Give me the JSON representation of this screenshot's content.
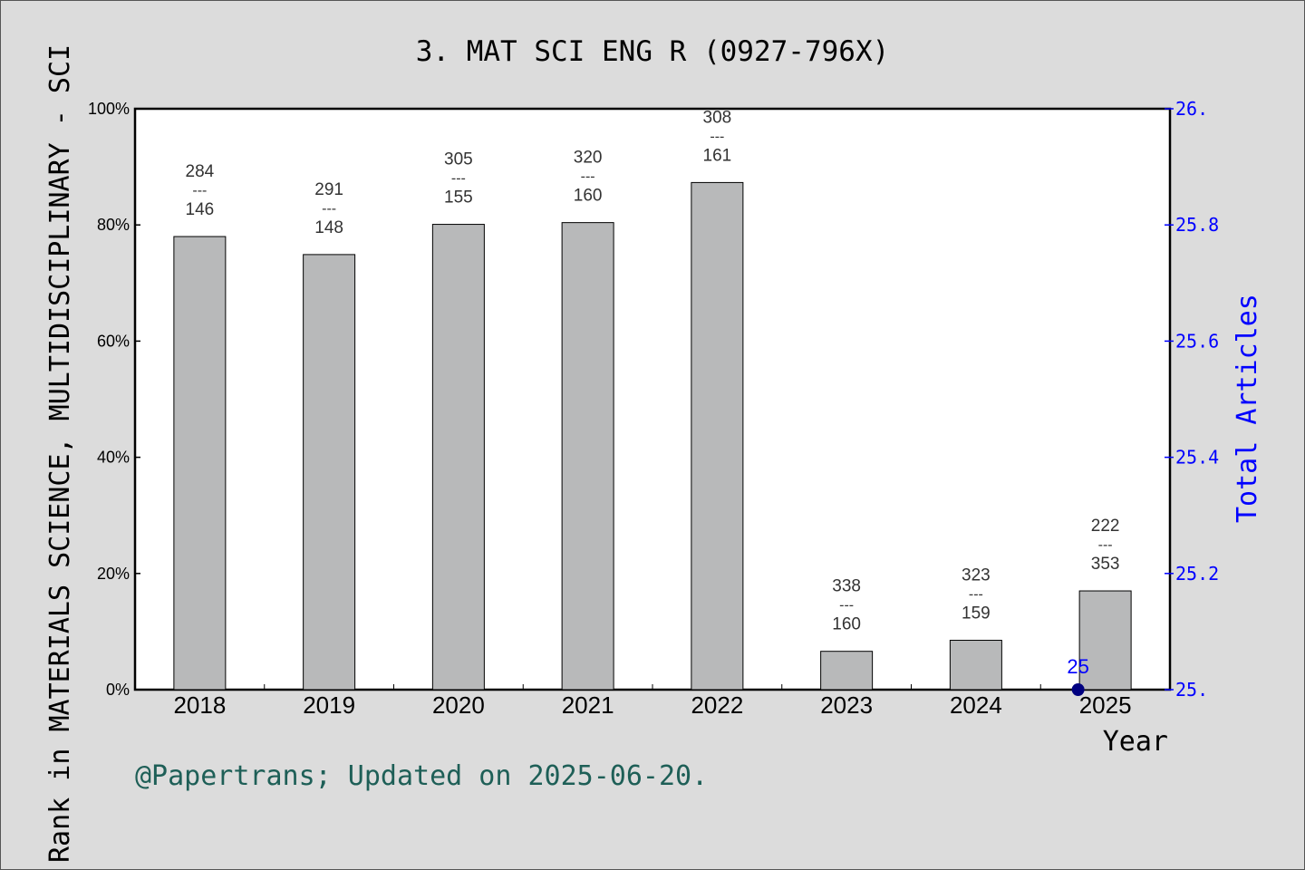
{
  "chart_data": {
    "type": "bar",
    "title": "3. MAT SCI ENG R (0927-796X)",
    "ylabel_left": "Rank in MATERIALS SCIENCE, MULTIDISCIPLINARY - SCI",
    "ylabel_right": "Total Articles",
    "xlabel": "Year",
    "categories": [
      "2018",
      "2019",
      "2020",
      "2021",
      "2022",
      "2023",
      "2024",
      "2025"
    ],
    "values_percent": [
      78.0,
      74.9,
      80.1,
      80.4,
      87.3,
      6.6,
      8.5,
      17.0
    ],
    "labels_top": [
      "284",
      "291",
      "305",
      "320",
      "308",
      "338",
      "323",
      "222"
    ],
    "labels_bottom": [
      "146",
      "148",
      "155",
      "160",
      "161",
      "160",
      "159",
      "353"
    ],
    "label_separator": "---",
    "ylim_left": [
      0,
      100
    ],
    "yticks_left": [
      "0%",
      "20%",
      "40%",
      "60%",
      "80%",
      "100%"
    ],
    "ylim_right": [
      25.0,
      26.0
    ],
    "yticks_right": [
      "25.",
      "25.2",
      "25.4",
      "25.6",
      "25.8",
      "26."
    ],
    "secondary_series": {
      "points": [
        {
          "x": "2025",
          "y": 25.0,
          "label": "25"
        }
      ],
      "color": "#000080"
    },
    "bar_color": "#b8b9ba",
    "right_axis_color": "#0000ff",
    "grid": false
  },
  "footer": "@Papertrans; Updated on 2025-06-20."
}
